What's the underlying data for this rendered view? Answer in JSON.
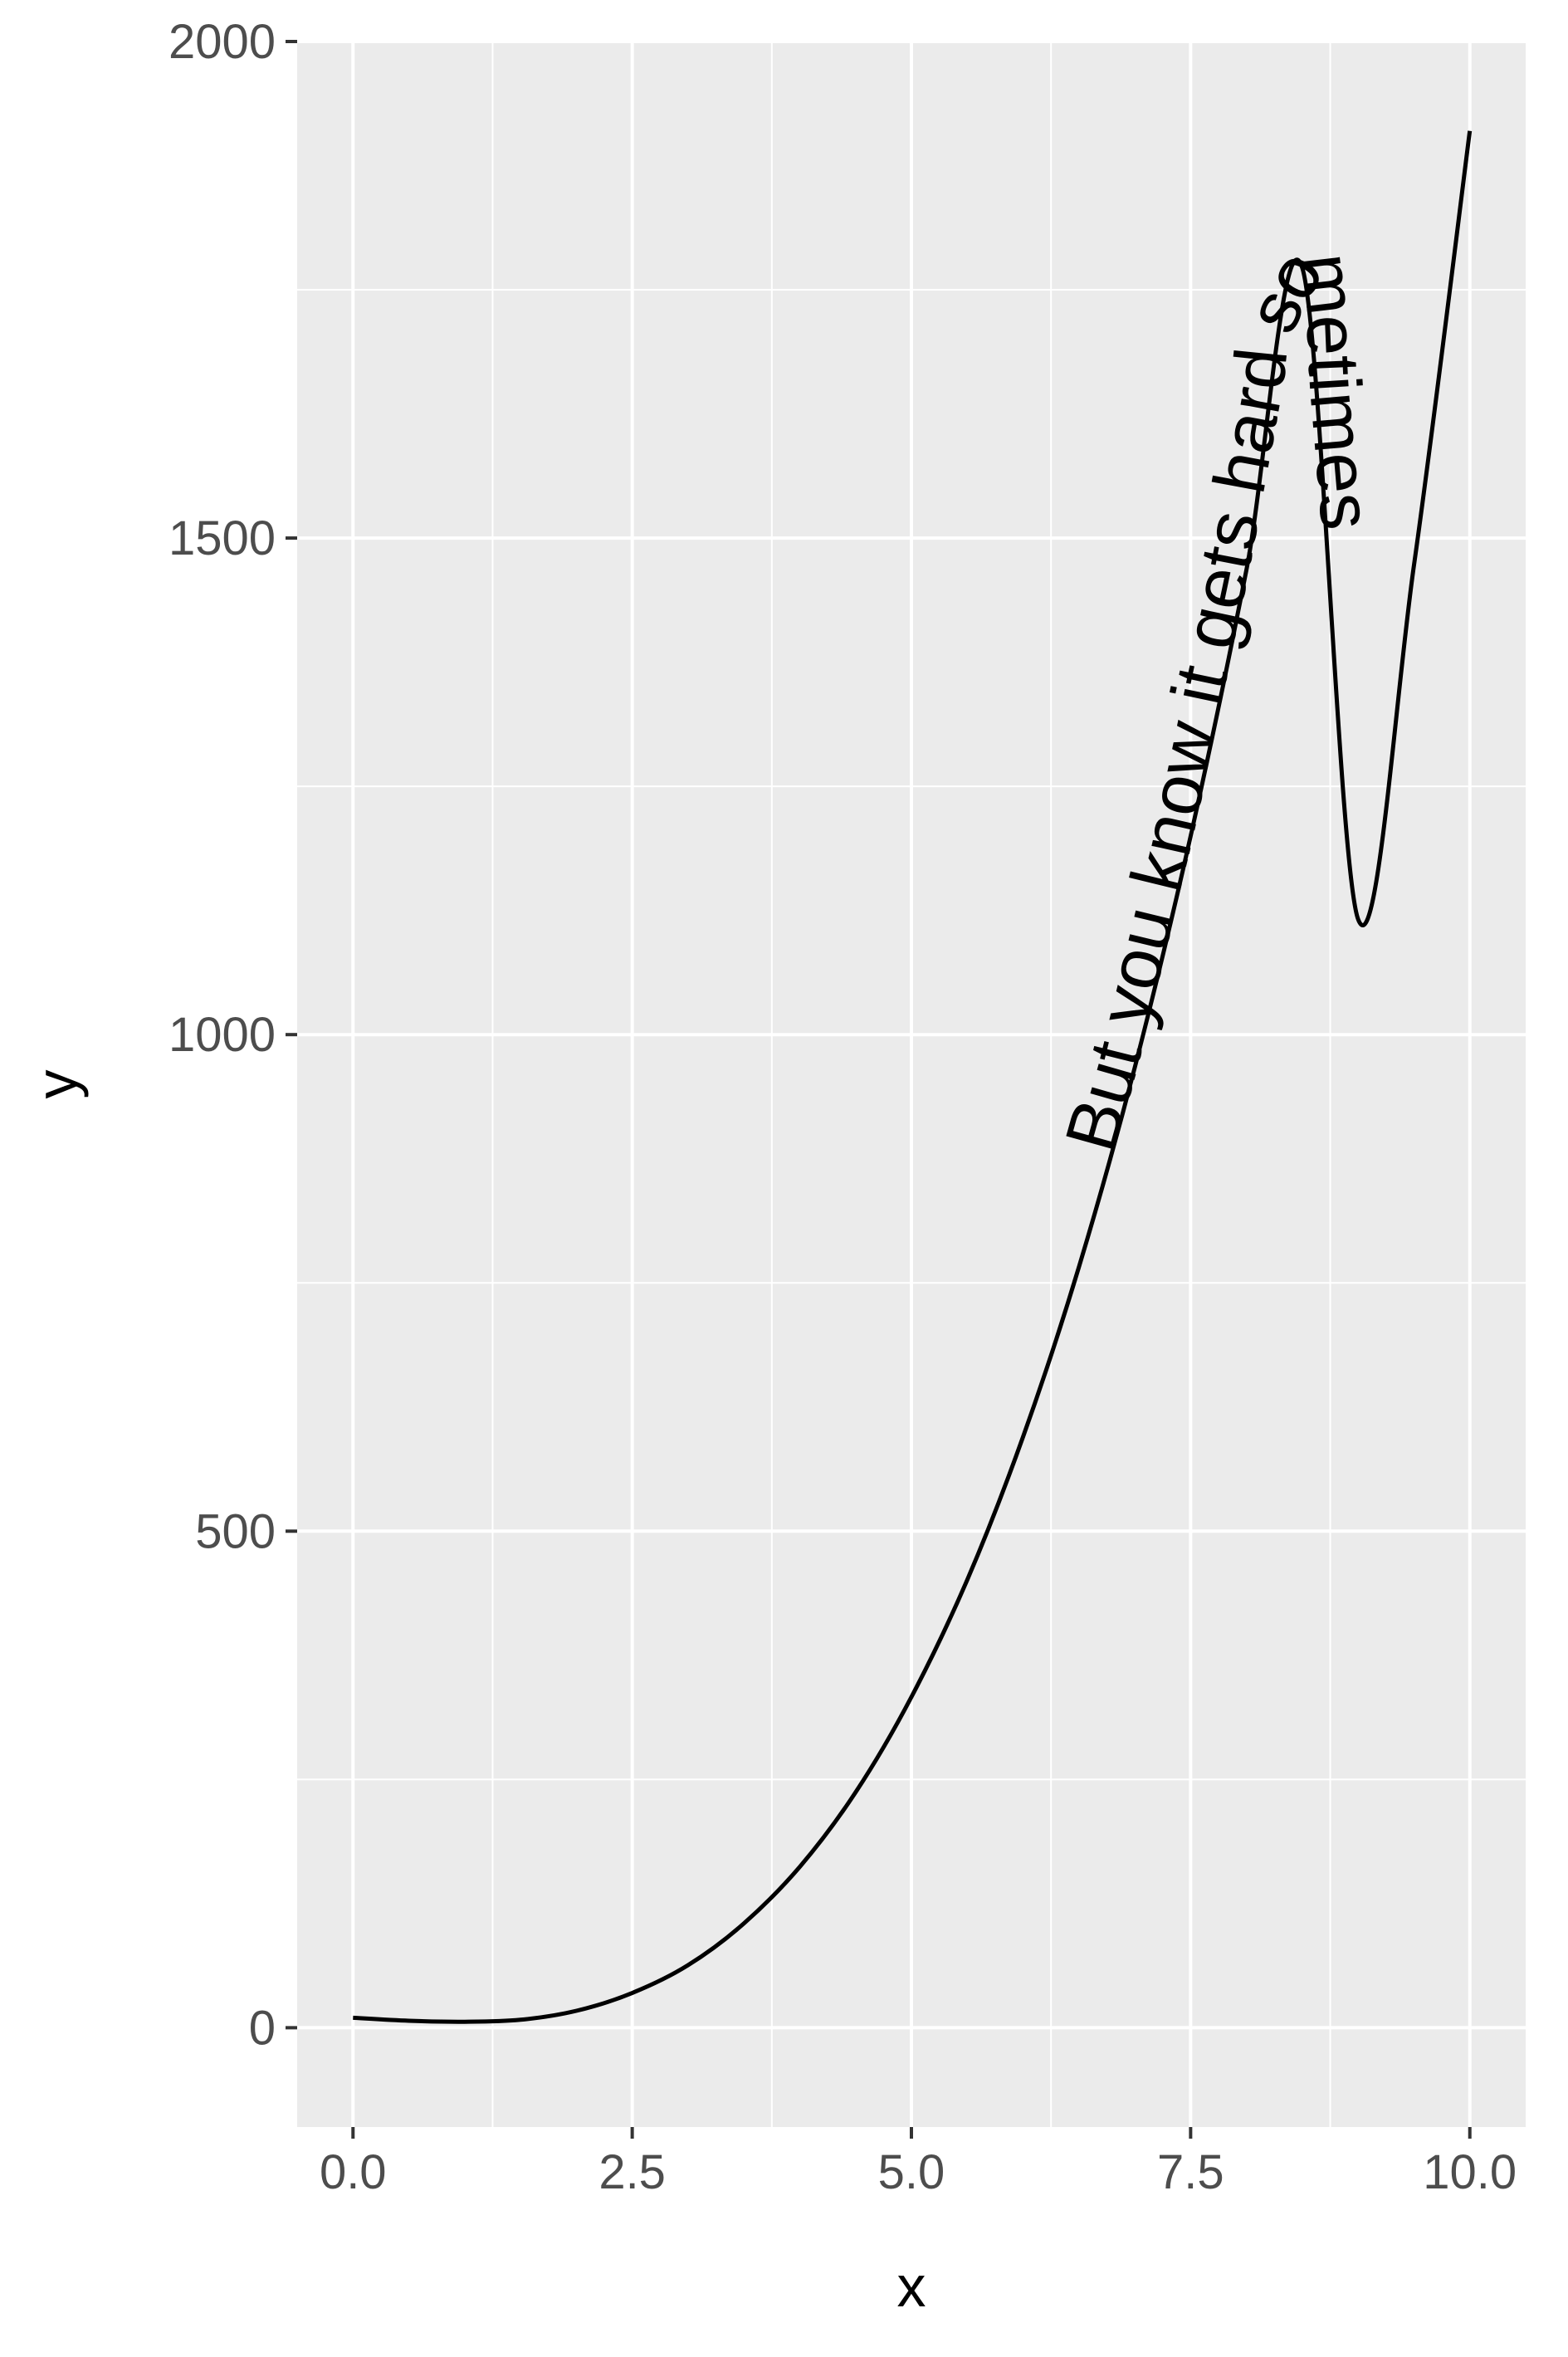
{
  "chart_data": {
    "type": "line",
    "title": "",
    "xlabel": "x",
    "ylabel": "y",
    "xlim": [
      -0.5,
      10.5
    ],
    "ylim": [
      -100,
      2000
    ],
    "x_ticks": [
      "0.0",
      "2.5",
      "5.0",
      "7.5",
      "10.0"
    ],
    "y_ticks": [
      "0",
      "500",
      "1000",
      "1500",
      "2000"
    ],
    "grid": true,
    "legend": "none",
    "colors": {
      "panel": "#ebebeb",
      "grid": "#ffffff",
      "line": "#000000",
      "tick_text": "#4d4d4d"
    },
    "curve_label": "But you know it gets hard sometimes",
    "series": [
      {
        "x": [
          0,
          0.5,
          1,
          1.5,
          2,
          2.5,
          3,
          3.5,
          4,
          4.5,
          5,
          5.5,
          6,
          6.5,
          7,
          7.5,
          8,
          8.5,
          9,
          9.5,
          10
        ],
        "values": [
          10,
          7,
          6,
          8,
          17,
          35,
          63,
          105,
          162,
          237,
          333,
          451,
          595,
          766,
          967,
          1200,
          1468,
          1772,
          1116,
          1473,
          1910
        ]
      }
    ]
  }
}
